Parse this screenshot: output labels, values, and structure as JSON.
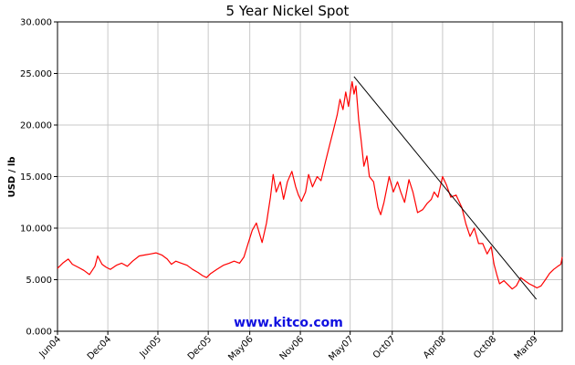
{
  "chart_data": {
    "type": "line",
    "title": "5 Year Nickel Spot",
    "ylabel": "USD / lb",
    "watermark": "www.kitco.com",
    "ylim": [
      0,
      30
    ],
    "yticks": [
      {
        "v": 0,
        "label": "0.000"
      },
      {
        "v": 5,
        "label": "5.000"
      },
      {
        "v": 10,
        "label": "10.000"
      },
      {
        "v": 15,
        "label": "15.000"
      },
      {
        "v": 20,
        "label": "20.000"
      },
      {
        "v": 25,
        "label": "25.000"
      },
      {
        "v": 30,
        "label": "30.000"
      }
    ],
    "xlim": [
      "2004-06-01",
      "2009-06-10"
    ],
    "xticks": [
      {
        "date": "2004-06-01",
        "label": "Jun04"
      },
      {
        "date": "2004-12-01",
        "label": "Dec04"
      },
      {
        "date": "2005-06-01",
        "label": "Jun05"
      },
      {
        "date": "2005-12-01",
        "label": "Dec05"
      },
      {
        "date": "2006-05-01",
        "label": "May06"
      },
      {
        "date": "2006-11-01",
        "label": "Nov06"
      },
      {
        "date": "2007-05-01",
        "label": "May07"
      },
      {
        "date": "2007-10-01",
        "label": "Oct07"
      },
      {
        "date": "2008-04-01",
        "label": "Apr08"
      },
      {
        "date": "2008-10-01",
        "label": "Oct08"
      },
      {
        "date": "2009-03-01",
        "label": "Mar09"
      }
    ],
    "grid": true,
    "series": [
      {
        "name": "",
        "color": "#ff0000",
        "points": [
          [
            "2004-06-01",
            6.1
          ],
          [
            "2004-06-20",
            6.6
          ],
          [
            "2004-07-10",
            7.0
          ],
          [
            "2004-07-25",
            6.5
          ],
          [
            "2004-08-15",
            6.2
          ],
          [
            "2004-09-05",
            5.9
          ],
          [
            "2004-09-25",
            5.5
          ],
          [
            "2004-10-15",
            6.3
          ],
          [
            "2004-10-25",
            7.3
          ],
          [
            "2004-11-10",
            6.5
          ],
          [
            "2004-11-25",
            6.2
          ],
          [
            "2004-12-10",
            6.0
          ],
          [
            "2005-01-01",
            6.4
          ],
          [
            "2005-01-20",
            6.6
          ],
          [
            "2005-02-10",
            6.3
          ],
          [
            "2005-03-01",
            6.8
          ],
          [
            "2005-03-25",
            7.3
          ],
          [
            "2005-04-15",
            7.4
          ],
          [
            "2005-05-05",
            7.5
          ],
          [
            "2005-05-25",
            7.6
          ],
          [
            "2005-06-15",
            7.4
          ],
          [
            "2005-07-05",
            7.0
          ],
          [
            "2005-07-20",
            6.5
          ],
          [
            "2005-08-05",
            6.8
          ],
          [
            "2005-08-25",
            6.6
          ],
          [
            "2005-09-15",
            6.4
          ],
          [
            "2005-10-05",
            6.0
          ],
          [
            "2005-10-25",
            5.7
          ],
          [
            "2005-11-10",
            5.4
          ],
          [
            "2005-11-25",
            5.2
          ],
          [
            "2005-12-10",
            5.6
          ],
          [
            "2006-01-01",
            6.0
          ],
          [
            "2006-01-25",
            6.4
          ],
          [
            "2006-02-15",
            6.6
          ],
          [
            "2006-03-05",
            6.8
          ],
          [
            "2006-03-25",
            6.6
          ],
          [
            "2006-04-10",
            7.2
          ],
          [
            "2006-04-25",
            8.5
          ],
          [
            "2006-05-10",
            9.8
          ],
          [
            "2006-05-25",
            10.5
          ],
          [
            "2006-06-05",
            9.5
          ],
          [
            "2006-06-15",
            8.6
          ],
          [
            "2006-07-01",
            10.5
          ],
          [
            "2006-07-15",
            13.0
          ],
          [
            "2006-07-25",
            15.2
          ],
          [
            "2006-08-05",
            13.5
          ],
          [
            "2006-08-20",
            14.5
          ],
          [
            "2006-09-01",
            12.8
          ],
          [
            "2006-09-15",
            14.5
          ],
          [
            "2006-10-01",
            15.5
          ],
          [
            "2006-10-15",
            14.0
          ],
          [
            "2006-10-25",
            13.2
          ],
          [
            "2006-11-05",
            12.6
          ],
          [
            "2006-11-20",
            13.5
          ],
          [
            "2006-12-01",
            15.2
          ],
          [
            "2006-12-15",
            14.0
          ],
          [
            "2007-01-01",
            15.0
          ],
          [
            "2007-01-15",
            14.6
          ],
          [
            "2007-02-01",
            16.5
          ],
          [
            "2007-02-15",
            18.0
          ],
          [
            "2007-03-01",
            19.5
          ],
          [
            "2007-03-15",
            21.0
          ],
          [
            "2007-03-25",
            22.5
          ],
          [
            "2007-04-05",
            21.5
          ],
          [
            "2007-04-15",
            23.2
          ],
          [
            "2007-04-25",
            21.8
          ],
          [
            "2007-05-01",
            23.0
          ],
          [
            "2007-05-08",
            24.2
          ],
          [
            "2007-05-15",
            23.0
          ],
          [
            "2007-05-22",
            23.8
          ],
          [
            "2007-06-01",
            20.5
          ],
          [
            "2007-06-10",
            18.5
          ],
          [
            "2007-06-20",
            16.0
          ],
          [
            "2007-07-01",
            17.0
          ],
          [
            "2007-07-10",
            15.0
          ],
          [
            "2007-07-25",
            14.5
          ],
          [
            "2007-08-10",
            12.0
          ],
          [
            "2007-08-20",
            11.3
          ],
          [
            "2007-09-01",
            12.5
          ],
          [
            "2007-09-20",
            15.0
          ],
          [
            "2007-10-05",
            13.5
          ],
          [
            "2007-10-20",
            14.5
          ],
          [
            "2007-11-01",
            13.5
          ],
          [
            "2007-11-15",
            12.5
          ],
          [
            "2007-12-01",
            14.7
          ],
          [
            "2007-12-15",
            13.5
          ],
          [
            "2008-01-01",
            11.5
          ],
          [
            "2008-01-20",
            11.8
          ],
          [
            "2008-02-05",
            12.4
          ],
          [
            "2008-02-20",
            12.8
          ],
          [
            "2008-03-01",
            13.5
          ],
          [
            "2008-03-15",
            13.0
          ],
          [
            "2008-04-01",
            15.0
          ],
          [
            "2008-04-15",
            14.2
          ],
          [
            "2008-05-01",
            13.0
          ],
          [
            "2008-05-20",
            13.2
          ],
          [
            "2008-06-10",
            12.0
          ],
          [
            "2008-06-25",
            10.4
          ],
          [
            "2008-07-10",
            9.2
          ],
          [
            "2008-07-25",
            10.0
          ],
          [
            "2008-08-10",
            8.5
          ],
          [
            "2008-08-25",
            8.5
          ],
          [
            "2008-09-10",
            7.5
          ],
          [
            "2008-09-25",
            8.2
          ],
          [
            "2008-10-05",
            6.5
          ],
          [
            "2008-10-15",
            5.5
          ],
          [
            "2008-10-25",
            4.6
          ],
          [
            "2008-11-10",
            4.9
          ],
          [
            "2008-11-25",
            4.5
          ],
          [
            "2008-12-10",
            4.1
          ],
          [
            "2008-12-25",
            4.4
          ],
          [
            "2009-01-10",
            5.2
          ],
          [
            "2009-01-25",
            4.9
          ],
          [
            "2009-02-10",
            4.6
          ],
          [
            "2009-02-25",
            4.4
          ],
          [
            "2009-03-10",
            4.2
          ],
          [
            "2009-03-25",
            4.4
          ],
          [
            "2009-04-10",
            5.0
          ],
          [
            "2009-04-25",
            5.6
          ],
          [
            "2009-05-10",
            6.0
          ],
          [
            "2009-05-25",
            6.3
          ],
          [
            "2009-06-05",
            6.5
          ],
          [
            "2009-06-10",
            7.2
          ]
        ]
      }
    ],
    "annotations": [
      {
        "type": "trendline",
        "color": "#000000",
        "from": [
          "2007-05-15",
          24.7
        ],
        "to": [
          "2009-03-08",
          3.1
        ]
      }
    ]
  }
}
